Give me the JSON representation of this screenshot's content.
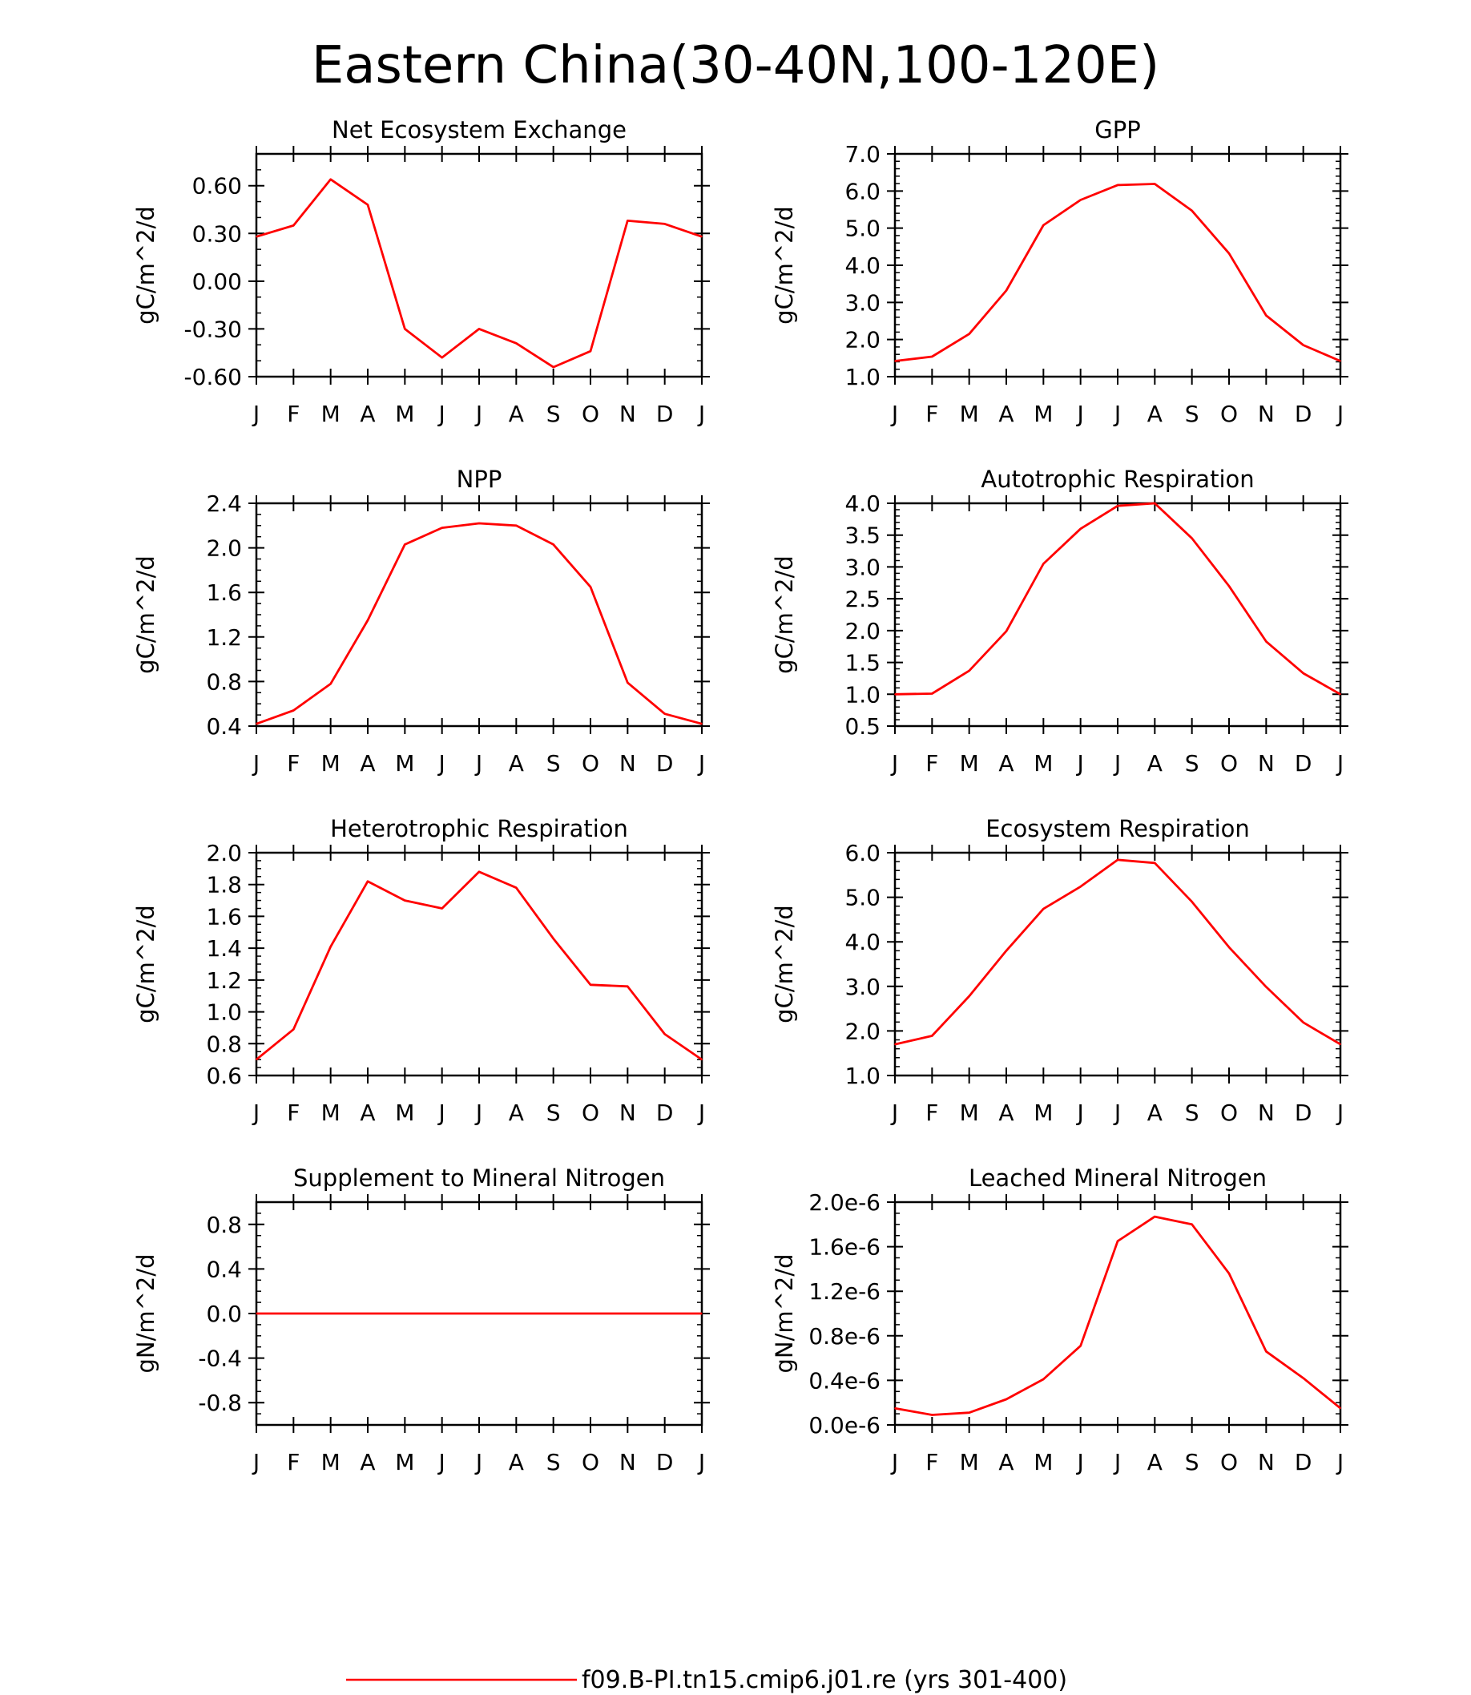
{
  "title": "Eastern China(30-40N,100-120E)",
  "legend": {
    "label": "f09.B-PI.tn15.cmip6.j01.re (yrs 301-400)",
    "color": "#ff0000"
  },
  "line_color": "#ff0000",
  "chart_data": [
    {
      "type": "line",
      "title": "Net Ecosystem Exchange",
      "ylabel": "gC/m^2/d",
      "categories": [
        "J",
        "F",
        "M",
        "A",
        "M",
        "J",
        "J",
        "A",
        "S",
        "O",
        "N",
        "D",
        "J"
      ],
      "ylim": [
        -0.6,
        0.8
      ],
      "yticks": [
        -0.6,
        -0.3,
        0.0,
        0.3,
        0.6
      ],
      "ytick_labels": [
        "-0.60",
        "-0.30",
        "0.00",
        "0.30",
        "0.60"
      ],
      "yminor": 0.1,
      "series": [
        {
          "values": [
            0.28,
            0.35,
            0.64,
            0.48,
            -0.3,
            -0.48,
            -0.3,
            -0.39,
            -0.54,
            -0.44,
            0.38,
            0.36,
            0.28
          ]
        }
      ]
    },
    {
      "type": "line",
      "title": "GPP",
      "ylabel": "gC/m^2/d",
      "categories": [
        "J",
        "F",
        "M",
        "A",
        "M",
        "J",
        "J",
        "A",
        "S",
        "O",
        "N",
        "D",
        "J"
      ],
      "ylim": [
        1.0,
        7.0
      ],
      "yticks": [
        1.0,
        2.0,
        3.0,
        4.0,
        5.0,
        6.0,
        7.0
      ],
      "ytick_labels": [
        "1.0",
        "2.0",
        "3.0",
        "4.0",
        "5.0",
        "6.0",
        "7.0"
      ],
      "yminor": 0.2,
      "series": [
        {
          "values": [
            1.42,
            1.54,
            2.15,
            3.32,
            5.08,
            5.76,
            6.16,
            6.19,
            5.47,
            4.32,
            2.65,
            1.85,
            1.42
          ]
        }
      ]
    },
    {
      "type": "line",
      "title": "NPP",
      "ylabel": "gC/m^2/d",
      "categories": [
        "J",
        "F",
        "M",
        "A",
        "M",
        "J",
        "J",
        "A",
        "S",
        "O",
        "N",
        "D",
        "J"
      ],
      "ylim": [
        0.4,
        2.4
      ],
      "yticks": [
        0.4,
        0.8,
        1.2,
        1.6,
        2.0,
        2.4
      ],
      "ytick_labels": [
        "0.4",
        "0.8",
        "1.2",
        "1.6",
        "2.0",
        "2.4"
      ],
      "yminor": 0.1,
      "series": [
        {
          "values": [
            0.42,
            0.54,
            0.78,
            1.35,
            2.03,
            2.18,
            2.22,
            2.2,
            2.03,
            1.65,
            0.79,
            0.51,
            0.42
          ]
        }
      ]
    },
    {
      "type": "line",
      "title": "Autotrophic Respiration",
      "ylabel": "gC/m^2/d",
      "categories": [
        "J",
        "F",
        "M",
        "A",
        "M",
        "J",
        "J",
        "A",
        "S",
        "O",
        "N",
        "D",
        "J"
      ],
      "ylim": [
        0.5,
        4.0
      ],
      "yticks": [
        0.5,
        1.0,
        1.5,
        2.0,
        2.5,
        3.0,
        3.5,
        4.0
      ],
      "ytick_labels": [
        "0.5",
        "1.0",
        "1.5",
        "2.0",
        "2.5",
        "3.0",
        "3.5",
        "4.0"
      ],
      "yminor": 0.1,
      "series": [
        {
          "values": [
            1.0,
            1.01,
            1.37,
            1.99,
            3.05,
            3.6,
            3.96,
            4.0,
            3.45,
            2.7,
            1.83,
            1.33,
            1.0
          ]
        }
      ]
    },
    {
      "type": "line",
      "title": "Heterotrophic Respiration",
      "ylabel": "gC/m^2/d",
      "categories": [
        "J",
        "F",
        "M",
        "A",
        "M",
        "J",
        "J",
        "A",
        "S",
        "O",
        "N",
        "D",
        "J"
      ],
      "ylim": [
        0.6,
        2.0
      ],
      "yticks": [
        0.6,
        0.8,
        1.0,
        1.2,
        1.4,
        1.6,
        1.8,
        2.0
      ],
      "ytick_labels": [
        "0.6",
        "0.8",
        "1.0",
        "1.2",
        "1.4",
        "1.6",
        "1.8",
        "2.0"
      ],
      "yminor": 0.05,
      "series": [
        {
          "values": [
            0.7,
            0.89,
            1.41,
            1.82,
            1.7,
            1.65,
            1.88,
            1.78,
            1.46,
            1.17,
            1.16,
            0.86,
            0.7
          ]
        }
      ]
    },
    {
      "type": "line",
      "title": "Ecosystem Respiration",
      "ylabel": "gC/m^2/d",
      "categories": [
        "J",
        "F",
        "M",
        "A",
        "M",
        "J",
        "J",
        "A",
        "S",
        "O",
        "N",
        "D",
        "J"
      ],
      "ylim": [
        1.0,
        6.0
      ],
      "yticks": [
        1.0,
        2.0,
        3.0,
        4.0,
        5.0,
        6.0
      ],
      "ytick_labels": [
        "1.0",
        "2.0",
        "3.0",
        "4.0",
        "5.0",
        "6.0"
      ],
      "yminor": 0.2,
      "series": [
        {
          "values": [
            1.7,
            1.89,
            2.78,
            3.8,
            4.74,
            5.24,
            5.84,
            5.77,
            4.9,
            3.88,
            2.99,
            2.19,
            1.7
          ]
        }
      ]
    },
    {
      "type": "line",
      "title": "Supplement to Mineral Nitrogen",
      "ylabel": "gN/m^2/d",
      "categories": [
        "J",
        "F",
        "M",
        "A",
        "M",
        "J",
        "J",
        "A",
        "S",
        "O",
        "N",
        "D",
        "J"
      ],
      "ylim": [
        -1.0,
        1.0
      ],
      "yticks": [
        -0.8,
        -0.4,
        0.0,
        0.4,
        0.8
      ],
      "ytick_labels": [
        "-0.8",
        "-0.4",
        "0.0",
        "0.4",
        "0.8"
      ],
      "yminor": 0.1,
      "series": [
        {
          "values": [
            0,
            0,
            0,
            0,
            0,
            0,
            0,
            0,
            0,
            0,
            0,
            0,
            0
          ]
        }
      ]
    },
    {
      "type": "line",
      "title": "Leached Mineral Nitrogen",
      "ylabel": "gN/m^2/d",
      "categories": [
        "J",
        "F",
        "M",
        "A",
        "M",
        "J",
        "J",
        "A",
        "S",
        "O",
        "N",
        "D",
        "J"
      ],
      "ylim": [
        0.0,
        2e-06
      ],
      "yticks": [
        0.0,
        4e-07,
        8e-07,
        1.2e-06,
        1.6e-06,
        2e-06
      ],
      "ytick_labels": [
        "0.0e-6",
        "0.4e-6",
        "0.8e-6",
        "1.2e-6",
        "1.6e-6",
        "2.0e-6"
      ],
      "yminor": 1e-07,
      "series": [
        {
          "values": [
            1.5e-07,
            9e-08,
            1.1e-07,
            2.3e-07,
            4.1e-07,
            7.1e-07,
            1.65e-06,
            1.87e-06,
            1.8e-06,
            1.36e-06,
            6.6e-07,
            4.2e-07,
            1.5e-07
          ]
        }
      ]
    }
  ]
}
